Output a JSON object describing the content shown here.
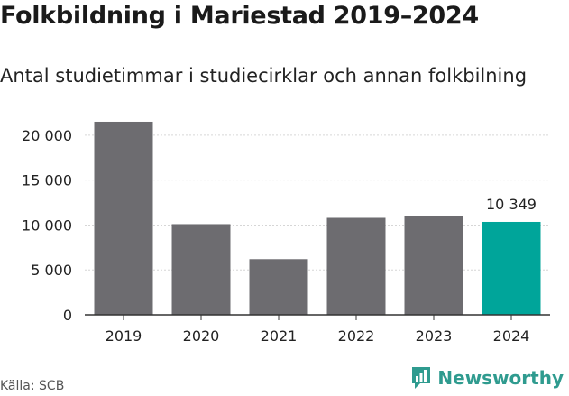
{
  "title": "Folkbildning i Mariestad 2019–2024",
  "subtitle": "Antal studietimmar i studiecirklar och annan folkbilning",
  "source": "Källa: SCB",
  "brand": {
    "name": "Newsworthy",
    "icon": "newsworthy-logo-icon",
    "color": "#2f9b8f"
  },
  "chart_data": {
    "type": "bar",
    "categories": [
      "2019",
      "2020",
      "2021",
      "2022",
      "2023",
      "2024"
    ],
    "values": [
      21500,
      10100,
      6200,
      10800,
      11000,
      10349
    ],
    "yticks": [
      0,
      5000,
      10000,
      15000,
      20000
    ],
    "ytick_labels": [
      "0",
      "5 000",
      "10 000",
      "15 000",
      "20 000"
    ],
    "ylim": [
      0,
      22000
    ],
    "annotation": {
      "index": 5,
      "label": "10 349"
    },
    "colors": {
      "default": "#6d6c70",
      "highlight": "#00a59a"
    },
    "highlight_index": 5,
    "grid": true,
    "xlabel": "",
    "ylabel": ""
  }
}
